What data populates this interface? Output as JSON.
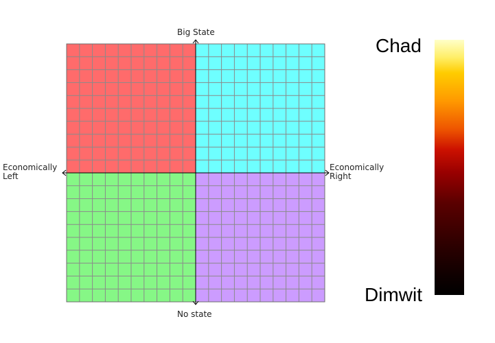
{
  "compass": {
    "top_label": "Big State",
    "bottom_label": "No state",
    "left_label_line1": "Economically",
    "left_label_line2": "Left",
    "right_label_line1": "Economically",
    "right_label_line2": "Right",
    "quadrant_colors": {
      "top_left": "#ff6b6b",
      "top_right": "#6effff",
      "bottom_left": "#86f786",
      "bottom_right": "#cc9cff"
    },
    "grid_line_color": "#8a8a8a",
    "grid_divisions": 20
  },
  "scale": {
    "top_label": "Chad",
    "bottom_label": "Dimwit",
    "gradient": [
      "#ffffc8",
      "#ffcc00",
      "#ff9900",
      "#cc1100",
      "#5a0000",
      "#000000"
    ]
  }
}
